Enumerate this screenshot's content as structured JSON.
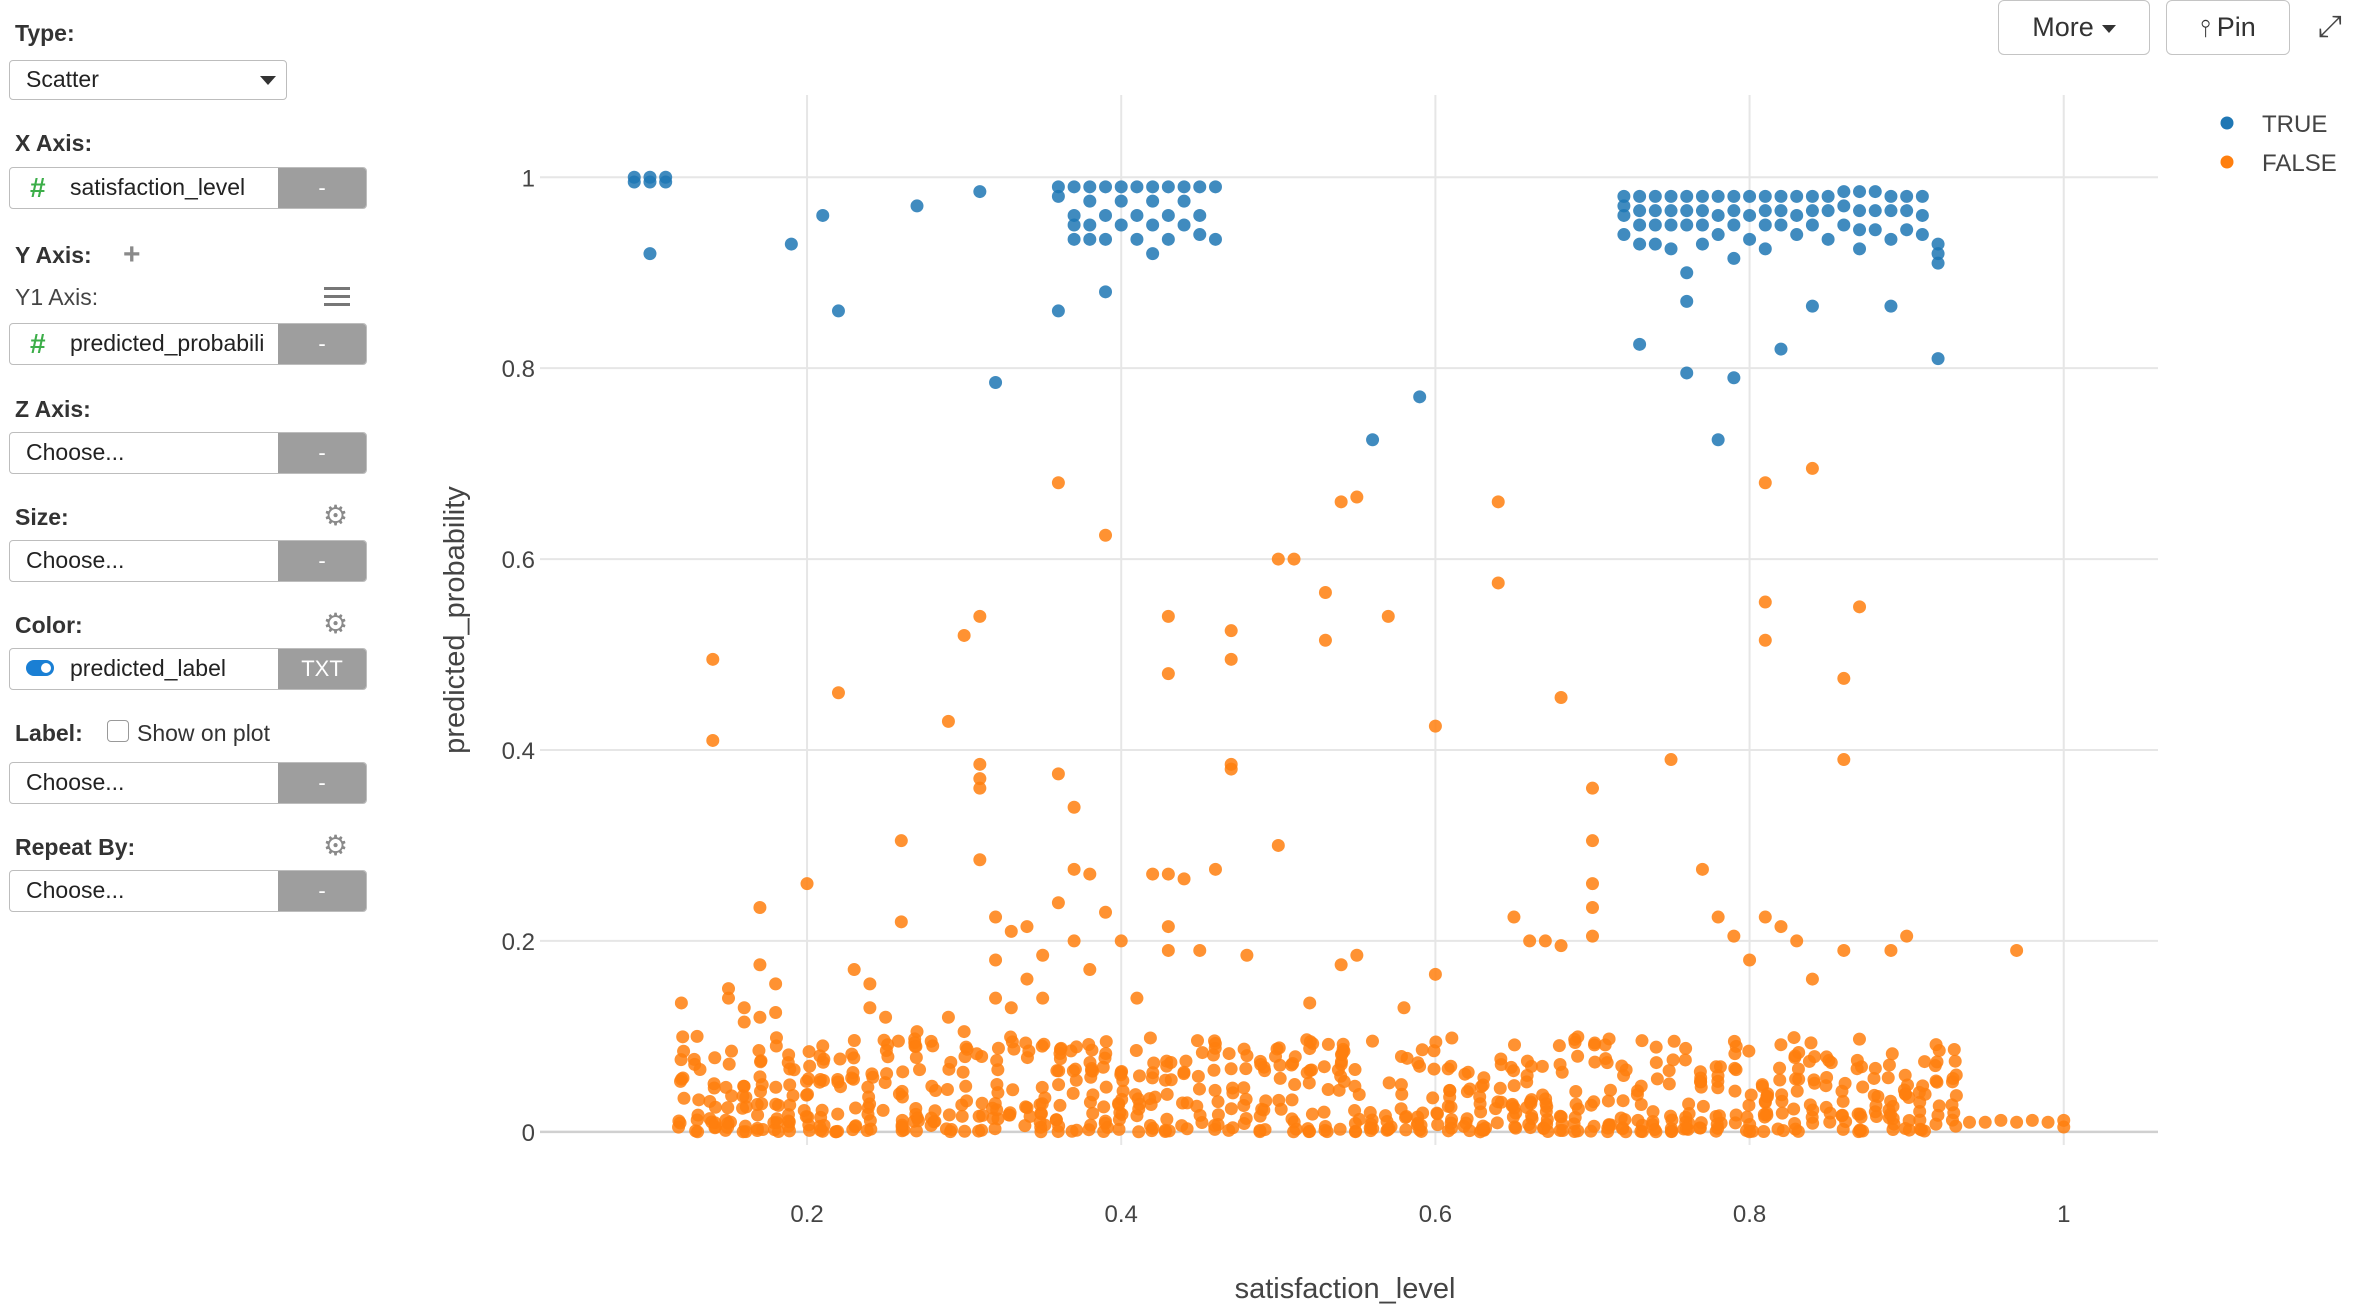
{
  "controls": {
    "type_label": "Type:",
    "type_value": "Scatter",
    "x_axis_label": "X Axis:",
    "x_axis_value": "satisfaction_level",
    "x_axis_btn": "-",
    "y_axis_label": "Y Axis:",
    "y1_axis_label": "Y1 Axis:",
    "y1_axis_value": "predicted_probabili",
    "y1_axis_btn": "-",
    "z_axis_label": "Z Axis:",
    "z_axis_placeholder": "Choose...",
    "z_axis_btn": "-",
    "size_label": "Size:",
    "size_placeholder": "Choose...",
    "size_btn": "-",
    "color_label": "Color:",
    "color_value": "predicted_label",
    "color_btn": "TXT",
    "label_label": "Label:",
    "label_checkbox": "Show on plot",
    "label_placeholder": "Choose...",
    "label_btn": "-",
    "repeat_label": "Repeat By:",
    "repeat_placeholder": "Choose...",
    "repeat_btn": "-"
  },
  "toolbar": {
    "more_label": "More",
    "pin_label": "Pin"
  },
  "icons": {
    "hash": "#",
    "gear": "⚙",
    "plus": "+",
    "pin": "📌",
    "expand": "⤢"
  },
  "colors": {
    "true_series": "#1f77b4",
    "false_series": "#ff7f0e"
  },
  "chart_data": {
    "type": "scatter",
    "xlabel": "satisfaction_level",
    "ylabel": "predicted_probability",
    "xlim": [
      0.03,
      1.06
    ],
    "ylim": [
      -0.04,
      1.06
    ],
    "x_ticks": [
      "0.2",
      "0.4",
      "0.6",
      "0.8",
      "1"
    ],
    "x_tick_values": [
      0.2,
      0.4,
      0.6,
      0.8,
      1.0
    ],
    "y_ticks": [
      "0",
      "0.2",
      "0.4",
      "0.6",
      "0.8",
      "1"
    ],
    "y_tick_values": [
      0,
      0.2,
      0.4,
      0.6,
      0.8,
      1.0
    ],
    "grid": true,
    "legend_position": "top-right",
    "series": [
      {
        "name": "TRUE",
        "points": [
          [
            0.09,
            1.0
          ],
          [
            0.1,
            1.0
          ],
          [
            0.1,
            0.995
          ],
          [
            0.11,
            1.0
          ],
          [
            0.09,
            0.995
          ],
          [
            0.11,
            0.995
          ],
          [
            0.1,
            0.92
          ],
          [
            0.19,
            0.93
          ],
          [
            0.21,
            0.96
          ],
          [
            0.22,
            0.86
          ],
          [
            0.27,
            0.97
          ],
          [
            0.31,
            0.985
          ],
          [
            0.32,
            0.785
          ],
          [
            0.36,
            0.99
          ],
          [
            0.36,
            0.98
          ],
          [
            0.37,
            0.99
          ],
          [
            0.37,
            0.96
          ],
          [
            0.37,
            0.95
          ],
          [
            0.37,
            0.935
          ],
          [
            0.38,
            0.99
          ],
          [
            0.38,
            0.975
          ],
          [
            0.38,
            0.95
          ],
          [
            0.38,
            0.935
          ],
          [
            0.39,
            0.99
          ],
          [
            0.39,
            0.96
          ],
          [
            0.39,
            0.935
          ],
          [
            0.4,
            0.99
          ],
          [
            0.4,
            0.975
          ],
          [
            0.4,
            0.95
          ],
          [
            0.41,
            0.99
          ],
          [
            0.41,
            0.96
          ],
          [
            0.41,
            0.935
          ],
          [
            0.42,
            0.99
          ],
          [
            0.42,
            0.975
          ],
          [
            0.42,
            0.95
          ],
          [
            0.42,
            0.92
          ],
          [
            0.43,
            0.99
          ],
          [
            0.43,
            0.96
          ],
          [
            0.43,
            0.935
          ],
          [
            0.44,
            0.99
          ],
          [
            0.44,
            0.975
          ],
          [
            0.44,
            0.95
          ],
          [
            0.45,
            0.99
          ],
          [
            0.45,
            0.96
          ],
          [
            0.45,
            0.94
          ],
          [
            0.46,
            0.99
          ],
          [
            0.46,
            0.935
          ],
          [
            0.36,
            0.86
          ],
          [
            0.39,
            0.88
          ],
          [
            0.56,
            0.725
          ],
          [
            0.59,
            0.77
          ],
          [
            0.72,
            0.98
          ],
          [
            0.72,
            0.97
          ],
          [
            0.72,
            0.96
          ],
          [
            0.72,
            0.94
          ],
          [
            0.73,
            0.98
          ],
          [
            0.73,
            0.965
          ],
          [
            0.73,
            0.95
          ],
          [
            0.73,
            0.93
          ],
          [
            0.73,
            0.825
          ],
          [
            0.74,
            0.98
          ],
          [
            0.74,
            0.965
          ],
          [
            0.74,
            0.95
          ],
          [
            0.74,
            0.93
          ],
          [
            0.75,
            0.98
          ],
          [
            0.75,
            0.965
          ],
          [
            0.75,
            0.95
          ],
          [
            0.75,
            0.925
          ],
          [
            0.76,
            0.98
          ],
          [
            0.76,
            0.965
          ],
          [
            0.76,
            0.95
          ],
          [
            0.76,
            0.9
          ],
          [
            0.76,
            0.87
          ],
          [
            0.76,
            0.795
          ],
          [
            0.77,
            0.98
          ],
          [
            0.77,
            0.965
          ],
          [
            0.77,
            0.95
          ],
          [
            0.77,
            0.93
          ],
          [
            0.78,
            0.98
          ],
          [
            0.78,
            0.96
          ],
          [
            0.78,
            0.94
          ],
          [
            0.78,
            0.725
          ],
          [
            0.79,
            0.98
          ],
          [
            0.79,
            0.965
          ],
          [
            0.79,
            0.95
          ],
          [
            0.79,
            0.915
          ],
          [
            0.79,
            0.79
          ],
          [
            0.8,
            0.98
          ],
          [
            0.8,
            0.96
          ],
          [
            0.8,
            0.935
          ],
          [
            0.81,
            0.98
          ],
          [
            0.81,
            0.965
          ],
          [
            0.81,
            0.95
          ],
          [
            0.81,
            0.925
          ],
          [
            0.82,
            0.98
          ],
          [
            0.82,
            0.965
          ],
          [
            0.82,
            0.95
          ],
          [
            0.82,
            0.82
          ],
          [
            0.83,
            0.98
          ],
          [
            0.83,
            0.96
          ],
          [
            0.83,
            0.94
          ],
          [
            0.84,
            0.98
          ],
          [
            0.84,
            0.965
          ],
          [
            0.84,
            0.95
          ],
          [
            0.84,
            0.865
          ],
          [
            0.85,
            0.98
          ],
          [
            0.85,
            0.965
          ],
          [
            0.85,
            0.935
          ],
          [
            0.86,
            0.985
          ],
          [
            0.86,
            0.97
          ],
          [
            0.86,
            0.95
          ],
          [
            0.87,
            0.985
          ],
          [
            0.87,
            0.965
          ],
          [
            0.87,
            0.945
          ],
          [
            0.87,
            0.925
          ],
          [
            0.88,
            0.985
          ],
          [
            0.88,
            0.965
          ],
          [
            0.88,
            0.945
          ],
          [
            0.89,
            0.98
          ],
          [
            0.89,
            0.965
          ],
          [
            0.89,
            0.935
          ],
          [
            0.89,
            0.865
          ],
          [
            0.9,
            0.98
          ],
          [
            0.9,
            0.965
          ],
          [
            0.9,
            0.945
          ],
          [
            0.91,
            0.98
          ],
          [
            0.91,
            0.96
          ],
          [
            0.91,
            0.94
          ],
          [
            0.92,
            0.93
          ],
          [
            0.92,
            0.92
          ],
          [
            0.92,
            0.91
          ],
          [
            0.92,
            0.81
          ]
        ]
      },
      {
        "name": "FALSE",
        "points": [
          [
            0.14,
            0.495
          ],
          [
            0.14,
            0.41
          ],
          [
            0.12,
            0.135
          ],
          [
            0.13,
            0.1
          ],
          [
            0.15,
            0.15
          ],
          [
            0.15,
            0.14
          ],
          [
            0.16,
            0.13
          ],
          [
            0.16,
            0.115
          ],
          [
            0.17,
            0.235
          ],
          [
            0.17,
            0.175
          ],
          [
            0.17,
            0.12
          ],
          [
            0.18,
            0.155
          ],
          [
            0.18,
            0.125
          ],
          [
            0.2,
            0.26
          ],
          [
            0.21,
            0.09
          ],
          [
            0.22,
            0.46
          ],
          [
            0.23,
            0.17
          ],
          [
            0.24,
            0.155
          ],
          [
            0.24,
            0.13
          ],
          [
            0.25,
            0.12
          ],
          [
            0.26,
            0.305
          ],
          [
            0.26,
            0.22
          ],
          [
            0.27,
            0.105
          ],
          [
            0.28,
            0.09
          ],
          [
            0.29,
            0.43
          ],
          [
            0.29,
            0.12
          ],
          [
            0.3,
            0.52
          ],
          [
            0.3,
            0.105
          ],
          [
            0.31,
            0.54
          ],
          [
            0.31,
            0.385
          ],
          [
            0.31,
            0.37
          ],
          [
            0.31,
            0.36
          ],
          [
            0.31,
            0.285
          ],
          [
            0.32,
            0.225
          ],
          [
            0.32,
            0.18
          ],
          [
            0.32,
            0.14
          ],
          [
            0.33,
            0.21
          ],
          [
            0.33,
            0.13
          ],
          [
            0.34,
            0.215
          ],
          [
            0.34,
            0.16
          ],
          [
            0.35,
            0.185
          ],
          [
            0.35,
            0.14
          ],
          [
            0.36,
            0.68
          ],
          [
            0.36,
            0.375
          ],
          [
            0.36,
            0.24
          ],
          [
            0.37,
            0.34
          ],
          [
            0.37,
            0.275
          ],
          [
            0.37,
            0.2
          ],
          [
            0.38,
            0.27
          ],
          [
            0.38,
            0.17
          ],
          [
            0.39,
            0.625
          ],
          [
            0.39,
            0.23
          ],
          [
            0.4,
            0.2
          ],
          [
            0.41,
            0.14
          ],
          [
            0.42,
            0.27
          ],
          [
            0.43,
            0.54
          ],
          [
            0.43,
            0.48
          ],
          [
            0.43,
            0.27
          ],
          [
            0.43,
            0.215
          ],
          [
            0.43,
            0.19
          ],
          [
            0.44,
            0.265
          ],
          [
            0.45,
            0.19
          ],
          [
            0.46,
            0.275
          ],
          [
            0.47,
            0.525
          ],
          [
            0.47,
            0.495
          ],
          [
            0.47,
            0.385
          ],
          [
            0.47,
            0.38
          ],
          [
            0.48,
            0.185
          ],
          [
            0.5,
            0.6
          ],
          [
            0.5,
            0.3
          ],
          [
            0.51,
            0.6
          ],
          [
            0.52,
            0.135
          ],
          [
            0.53,
            0.565
          ],
          [
            0.53,
            0.515
          ],
          [
            0.54,
            0.66
          ],
          [
            0.54,
            0.175
          ],
          [
            0.55,
            0.665
          ],
          [
            0.55,
            0.185
          ],
          [
            0.57,
            0.54
          ],
          [
            0.58,
            0.13
          ],
          [
            0.6,
            0.425
          ],
          [
            0.6,
            0.165
          ],
          [
            0.64,
            0.66
          ],
          [
            0.64,
            0.575
          ],
          [
            0.65,
            0.225
          ],
          [
            0.66,
            0.2
          ],
          [
            0.67,
            0.2
          ],
          [
            0.68,
            0.455
          ],
          [
            0.68,
            0.195
          ],
          [
            0.7,
            0.36
          ],
          [
            0.7,
            0.305
          ],
          [
            0.7,
            0.26
          ],
          [
            0.7,
            0.235
          ],
          [
            0.7,
            0.205
          ],
          [
            0.75,
            0.39
          ],
          [
            0.77,
            0.275
          ],
          [
            0.78,
            0.225
          ],
          [
            0.79,
            0.205
          ],
          [
            0.8,
            0.18
          ],
          [
            0.81,
            0.68
          ],
          [
            0.81,
            0.555
          ],
          [
            0.81,
            0.515
          ],
          [
            0.81,
            0.225
          ],
          [
            0.82,
            0.215
          ],
          [
            0.83,
            0.2
          ],
          [
            0.84,
            0.695
          ],
          [
            0.84,
            0.16
          ],
          [
            0.86,
            0.475
          ],
          [
            0.86,
            0.39
          ],
          [
            0.86,
            0.19
          ],
          [
            0.87,
            0.55
          ],
          [
            0.89,
            0.19
          ],
          [
            0.9,
            0.205
          ],
          [
            0.97,
            0.19
          ],
          [
            0.94,
            0.01
          ],
          [
            0.95,
            0.01
          ],
          [
            0.96,
            0.012
          ],
          [
            0.97,
            0.01
          ],
          [
            0.98,
            0.012
          ],
          [
            0.99,
            0.01
          ],
          [
            1.0,
            0.012
          ],
          [
            1.0,
            0.005
          ],
          [
            0.93,
            0.02
          ]
        ],
        "dense_band": {
          "x_range": [
            0.12,
            0.93
          ],
          "y_range": [
            0.0,
            0.1
          ],
          "description": "dense cluster of FALSE points"
        }
      }
    ]
  }
}
